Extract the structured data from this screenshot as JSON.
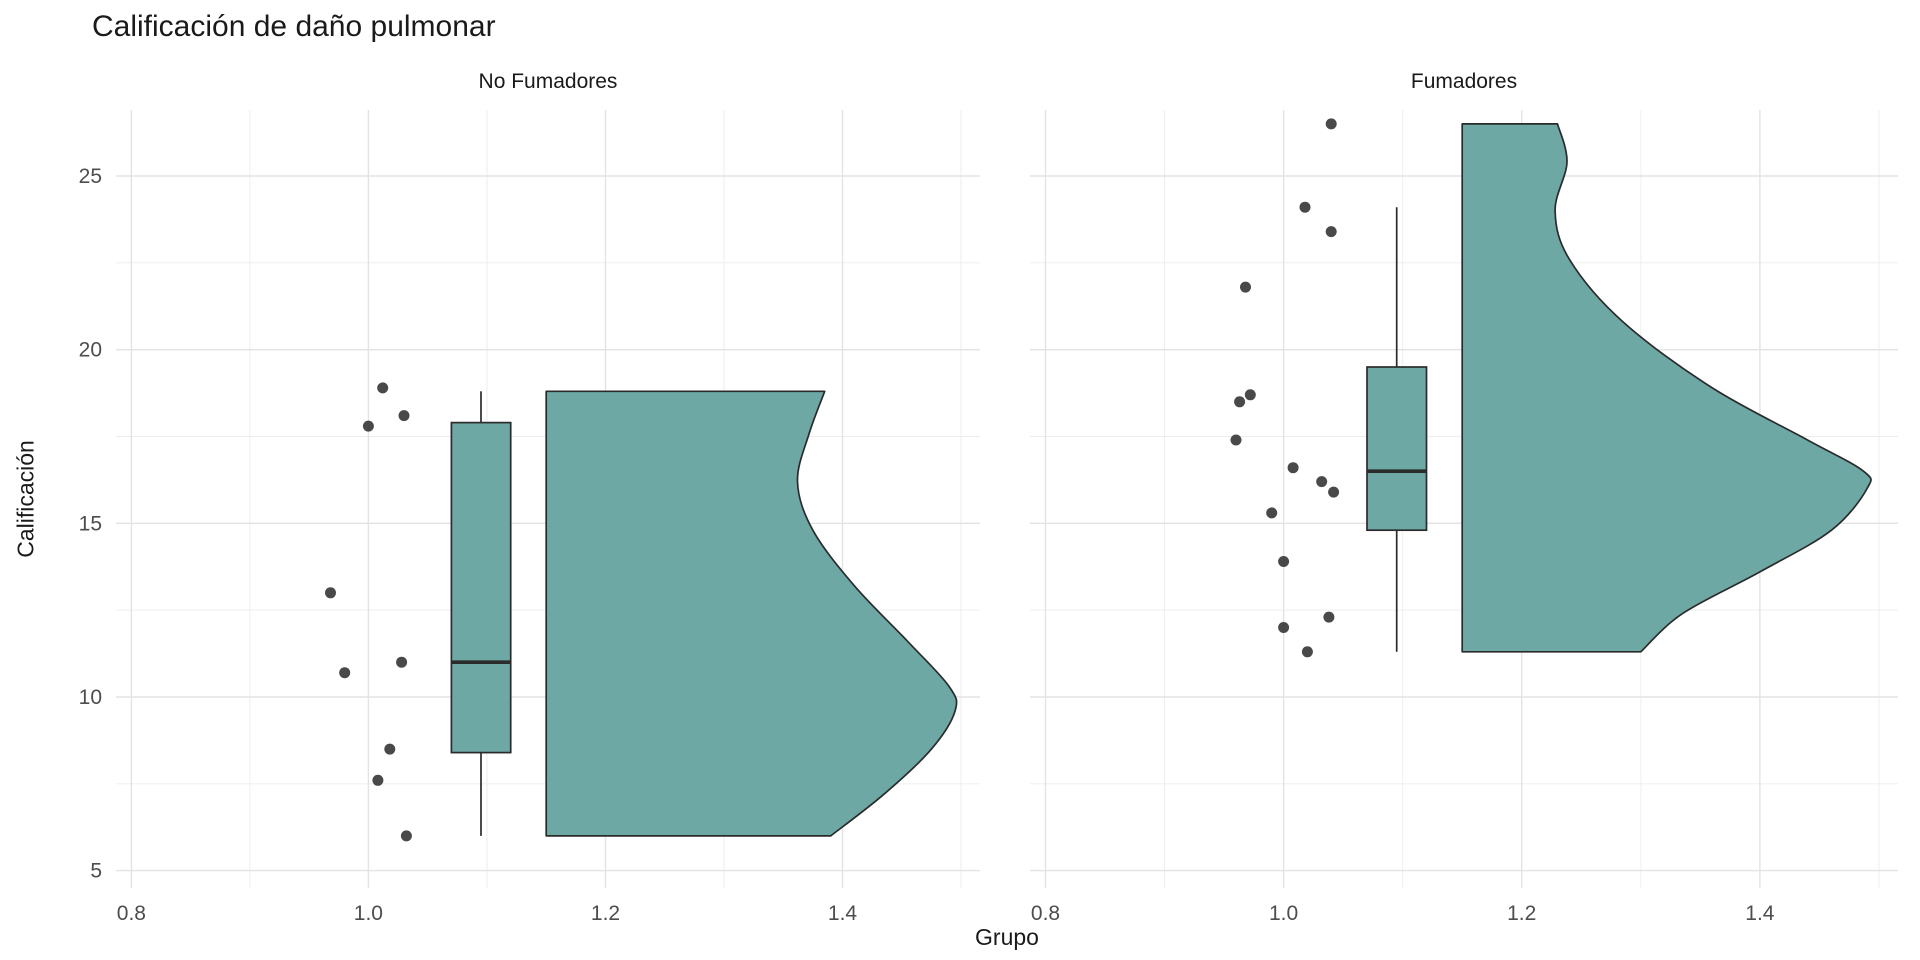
{
  "chart_data": {
    "type": "raincloud",
    "components": [
      "jittered points",
      "boxplot",
      "half-violin density"
    ],
    "title": "Calificación de daño pulmonar",
    "xlabel": "Grupo",
    "ylabel": "Calificación",
    "x_range": [
      0.787,
      1.516
    ],
    "y_range": [
      4.5,
      26.9
    ],
    "x_ticks": [
      0.8,
      1.0,
      1.2,
      1.4
    ],
    "x_tick_labels": [
      "0.8",
      "1.0",
      "1.2",
      "1.4"
    ],
    "x_minor_gridlines": [
      0.9,
      1.1,
      1.3,
      1.5
    ],
    "y_ticks": [
      5,
      10,
      15,
      20,
      25
    ],
    "y_tick_labels": [
      "5",
      "10",
      "15",
      "20",
      "25"
    ],
    "y_minor_gridlines": [
      7.5,
      12.5,
      17.5,
      22.5
    ],
    "grid": true,
    "legend": "none",
    "colors": {
      "fill": "#6DA8A4",
      "outline": "#2b2b2b",
      "points": "#303030",
      "grid_major": "#e3e3e3",
      "grid_minor": "#ededed",
      "title_text": "#1a1a1a",
      "tick_text": "#4d4d4d"
    },
    "facets": [
      {
        "label": "No Fumadores",
        "points": [
          [
            1.012,
            18.9
          ],
          [
            1.0,
            17.8
          ],
          [
            1.03,
            18.1
          ],
          [
            0.968,
            13.0
          ],
          [
            0.98,
            10.7
          ],
          [
            1.028,
            11.0
          ],
          [
            1.018,
            8.5
          ],
          [
            1.008,
            7.6
          ],
          [
            1.032,
            6.0
          ]
        ],
        "boxplot": {
          "x_center": 1.095,
          "box_width": 0.05,
          "q1": 8.4,
          "median": 11.0,
          "q3": 17.9,
          "whisker_low": 6.0,
          "whisker_high": 18.8
        },
        "violin": {
          "left_edge": 1.15,
          "profile": [
            [
              1.385,
              18.8
            ],
            [
              1.372,
              17.6
            ],
            [
              1.362,
              16.2
            ],
            [
              1.375,
              14.8
            ],
            [
              1.41,
              13.2
            ],
            [
              1.455,
              11.6
            ],
            [
              1.49,
              10.3
            ],
            [
              1.495,
              9.6
            ],
            [
              1.475,
              8.5
            ],
            [
              1.435,
              7.2
            ],
            [
              1.39,
              6.0
            ]
          ]
        }
      },
      {
        "label": "Fumadores",
        "points": [
          [
            1.04,
            26.5
          ],
          [
            1.018,
            24.1
          ],
          [
            1.04,
            23.4
          ],
          [
            0.968,
            21.8
          ],
          [
            0.972,
            18.7
          ],
          [
            0.963,
            18.5
          ],
          [
            0.96,
            17.4
          ],
          [
            1.008,
            16.6
          ],
          [
            1.032,
            16.2
          ],
          [
            1.042,
            15.9
          ],
          [
            0.99,
            15.3
          ],
          [
            1.0,
            13.9
          ],
          [
            1.038,
            12.3
          ],
          [
            1.0,
            12.0
          ],
          [
            1.02,
            11.3
          ]
        ],
        "boxplot": {
          "x_center": 1.095,
          "box_width": 0.05,
          "q1": 14.8,
          "median": 16.5,
          "q3": 19.5,
          "whisker_low": 11.3,
          "whisker_high": 24.1
        },
        "violin": {
          "left_edge": 1.15,
          "profile": [
            [
              1.23,
              26.5
            ],
            [
              1.238,
              25.4
            ],
            [
              1.228,
              24.0
            ],
            [
              1.24,
              22.6
            ],
            [
              1.285,
              20.8
            ],
            [
              1.36,
              18.9
            ],
            [
              1.44,
              17.4
            ],
            [
              1.487,
              16.5
            ],
            [
              1.49,
              16.0
            ],
            [
              1.46,
              14.8
            ],
            [
              1.4,
              13.6
            ],
            [
              1.335,
              12.4
            ],
            [
              1.3,
              11.3
            ]
          ]
        }
      }
    ]
  }
}
